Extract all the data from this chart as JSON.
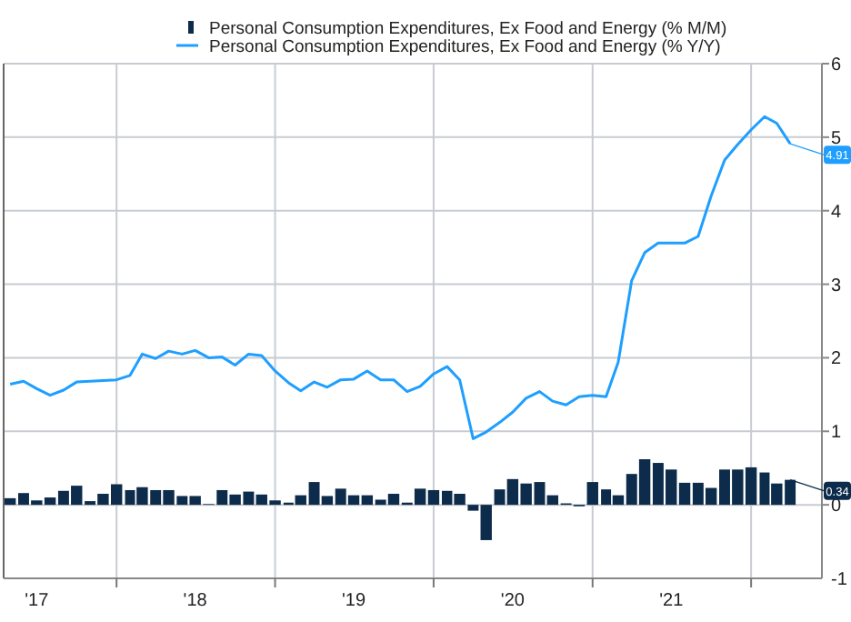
{
  "chart_data": {
    "type": "bar",
    "x": [
      "2017-05",
      "2017-06",
      "2017-07",
      "2017-08",
      "2017-09",
      "2017-10",
      "2017-11",
      "2017-12",
      "2018-01",
      "2018-02",
      "2018-03",
      "2018-04",
      "2018-05",
      "2018-06",
      "2018-07",
      "2018-08",
      "2018-09",
      "2018-10",
      "2018-11",
      "2018-12",
      "2019-01",
      "2019-02",
      "2019-03",
      "2019-04",
      "2019-05",
      "2019-06",
      "2019-07",
      "2019-08",
      "2019-09",
      "2019-10",
      "2019-11",
      "2019-12",
      "2020-01",
      "2020-02",
      "2020-03",
      "2020-04",
      "2020-05",
      "2020-06",
      "2020-07",
      "2020-08",
      "2020-09",
      "2020-10",
      "2020-11",
      "2020-12",
      "2021-01",
      "2021-02",
      "2021-03",
      "2021-04",
      "2021-05",
      "2021-06",
      "2021-07",
      "2021-08",
      "2021-09",
      "2021-10",
      "2021-11",
      "2021-12",
      "2022-01",
      "2022-02",
      "2022-03",
      "2022-04"
    ],
    "series": [
      {
        "name": "Personal Consumption Expenditures, Ex Food and Energy (% M/M)",
        "color": "#0d2b4a",
        "values": [
          0.09,
          0.16,
          0.06,
          0.1,
          0.19,
          0.26,
          0.05,
          0.15,
          0.28,
          0.2,
          0.24,
          0.2,
          0.2,
          0.12,
          0.12,
          0.01,
          0.2,
          0.14,
          0.18,
          0.14,
          0.06,
          0.03,
          0.13,
          0.31,
          0.12,
          0.22,
          0.13,
          0.13,
          0.07,
          0.15,
          0.03,
          0.22,
          0.2,
          0.19,
          0.15,
          -0.08,
          -0.48,
          0.21,
          0.35,
          0.29,
          0.31,
          0.13,
          0.02,
          -0.02,
          0.31,
          0.21,
          0.13,
          0.42,
          0.62,
          0.57,
          0.48,
          0.3,
          0.3,
          0.23,
          0.48,
          0.48,
          0.51,
          0.44,
          0.29,
          0.34
        ]
      },
      {
        "name": "Personal Consumption Expenditures, Ex Food and Energy (% Y/Y)",
        "type": "line",
        "color": "#1e9fff",
        "values": [
          1.64,
          1.68,
          1.58,
          1.49,
          1.56,
          1.67,
          1.68,
          1.69,
          1.7,
          1.76,
          2.05,
          1.99,
          2.09,
          2.05,
          2.1,
          2.0,
          2.01,
          1.9,
          2.05,
          2.03,
          1.82,
          1.66,
          1.55,
          1.67,
          1.6,
          1.7,
          1.71,
          1.82,
          1.7,
          1.7,
          1.54,
          1.61,
          1.78,
          1.88,
          1.7,
          0.9,
          0.99,
          1.12,
          1.26,
          1.45,
          1.54,
          1.41,
          1.36,
          1.47,
          1.49,
          1.47,
          1.94,
          3.05,
          3.43,
          3.56,
          3.56,
          3.56,
          3.65,
          4.2,
          4.69,
          4.9,
          5.1,
          5.28,
          5.19,
          4.91
        ]
      }
    ],
    "xlim": [
      "2017-04-16",
      "2022-06-13"
    ],
    "xticks": [
      {
        "value": "2017-07-01",
        "label": "'17"
      },
      {
        "value": "2018-01-01",
        "label": null
      },
      {
        "value": "2018-07-01",
        "label": "'18"
      },
      {
        "value": "2019-01-01",
        "label": null
      },
      {
        "value": "2019-07-01",
        "label": "'19"
      },
      {
        "value": "2020-01-01",
        "label": null
      },
      {
        "value": "2020-07-01",
        "label": "'20"
      },
      {
        "value": "2021-01-01",
        "label": null
      },
      {
        "value": "2021-07-01",
        "label": "'21"
      },
      {
        "value": "2022-01-01",
        "label": null
      }
    ],
    "ylim": [
      -1,
      6
    ],
    "yticks": [
      -1,
      0,
      1,
      2,
      3,
      4,
      5,
      6
    ],
    "grid": true,
    "legend": "top",
    "annotations": [
      {
        "text": "0.34",
        "x": "2022-04",
        "y": 0.34
      },
      {
        "text": "4.91",
        "x": "2022-04",
        "y": 4.91
      }
    ]
  }
}
